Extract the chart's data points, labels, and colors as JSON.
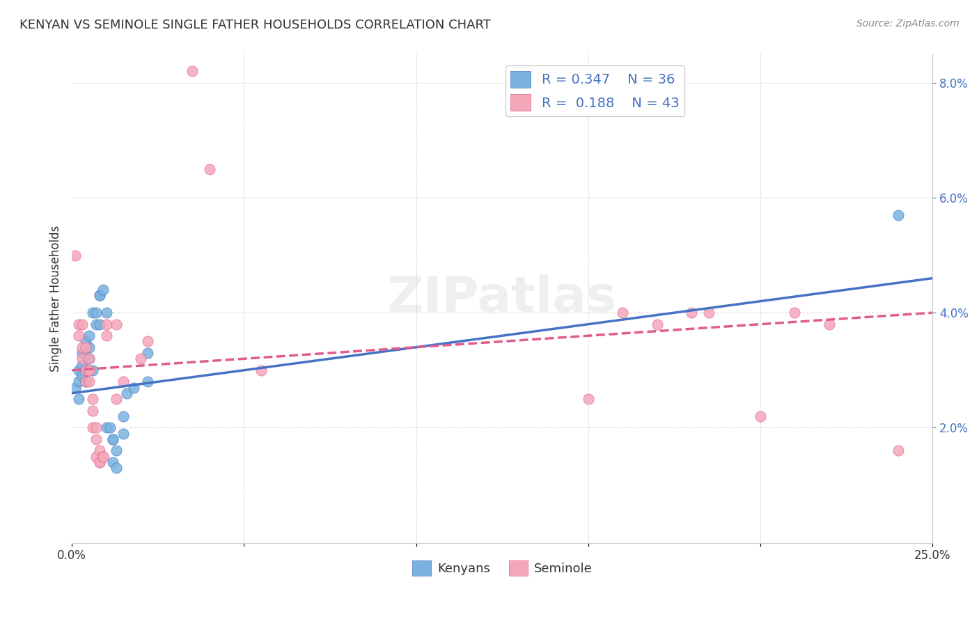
{
  "title": "KENYAN VS SEMINOLE SINGLE FATHER HOUSEHOLDS CORRELATION CHART",
  "source": "Source: ZipAtlas.com",
  "ylabel": "Single Father Households",
  "xlim": [
    0.0,
    0.25
  ],
  "ylim": [
    0.0,
    0.085
  ],
  "xticks": [
    0.0,
    0.05,
    0.1,
    0.15,
    0.2,
    0.25
  ],
  "yticks_right": [
    0.02,
    0.04,
    0.06,
    0.08
  ],
  "ytick_labels_right": [
    "2.0%",
    "4.0%",
    "6.0%",
    "8.0%"
  ],
  "watermark": "ZIPatlas",
  "legend_r1": "0.347",
  "legend_n1": "36",
  "legend_r2": "0.188",
  "legend_n2": "43",
  "kenyan_color": "#7ab3e0",
  "seminole_color": "#f4a7b9",
  "kenyan_line_color": "#4472c4",
  "seminole_line_color": "#e05c8a",
  "kenyan_scatter": [
    [
      0.001,
      0.027
    ],
    [
      0.002,
      0.025
    ],
    [
      0.002,
      0.03
    ],
    [
      0.002,
      0.028
    ],
    [
      0.003,
      0.031
    ],
    [
      0.003,
      0.033
    ],
    [
      0.003,
      0.029
    ],
    [
      0.004,
      0.035
    ],
    [
      0.004,
      0.03
    ],
    [
      0.004,
      0.028
    ],
    [
      0.005,
      0.034
    ],
    [
      0.005,
      0.032
    ],
    [
      0.005,
      0.036
    ],
    [
      0.006,
      0.04
    ],
    [
      0.006,
      0.03
    ],
    [
      0.007,
      0.04
    ],
    [
      0.007,
      0.038
    ],
    [
      0.008,
      0.038
    ],
    [
      0.008,
      0.043
    ],
    [
      0.008,
      0.043
    ],
    [
      0.009,
      0.044
    ],
    [
      0.01,
      0.04
    ],
    [
      0.01,
      0.02
    ],
    [
      0.011,
      0.02
    ],
    [
      0.012,
      0.018
    ],
    [
      0.012,
      0.018
    ],
    [
      0.012,
      0.014
    ],
    [
      0.013,
      0.016
    ],
    [
      0.013,
      0.013
    ],
    [
      0.015,
      0.022
    ],
    [
      0.015,
      0.019
    ],
    [
      0.016,
      0.026
    ],
    [
      0.018,
      0.027
    ],
    [
      0.022,
      0.033
    ],
    [
      0.022,
      0.028
    ],
    [
      0.24,
      0.057
    ]
  ],
  "seminole_scatter": [
    [
      0.001,
      0.05
    ],
    [
      0.002,
      0.038
    ],
    [
      0.002,
      0.036
    ],
    [
      0.003,
      0.038
    ],
    [
      0.003,
      0.034
    ],
    [
      0.003,
      0.032
    ],
    [
      0.004,
      0.034
    ],
    [
      0.004,
      0.03
    ],
    [
      0.004,
      0.028
    ],
    [
      0.005,
      0.032
    ],
    [
      0.005,
      0.03
    ],
    [
      0.005,
      0.03
    ],
    [
      0.005,
      0.028
    ],
    [
      0.006,
      0.025
    ],
    [
      0.006,
      0.023
    ],
    [
      0.006,
      0.02
    ],
    [
      0.007,
      0.02
    ],
    [
      0.007,
      0.018
    ],
    [
      0.007,
      0.015
    ],
    [
      0.008,
      0.016
    ],
    [
      0.008,
      0.014
    ],
    [
      0.008,
      0.014
    ],
    [
      0.009,
      0.015
    ],
    [
      0.009,
      0.015
    ],
    [
      0.01,
      0.038
    ],
    [
      0.01,
      0.036
    ],
    [
      0.013,
      0.038
    ],
    [
      0.013,
      0.025
    ],
    [
      0.015,
      0.028
    ],
    [
      0.02,
      0.032
    ],
    [
      0.022,
      0.035
    ],
    [
      0.035,
      0.082
    ],
    [
      0.04,
      0.065
    ],
    [
      0.055,
      0.03
    ],
    [
      0.15,
      0.025
    ],
    [
      0.16,
      0.04
    ],
    [
      0.17,
      0.038
    ],
    [
      0.18,
      0.04
    ],
    [
      0.185,
      0.04
    ],
    [
      0.2,
      0.022
    ],
    [
      0.21,
      0.04
    ],
    [
      0.22,
      0.038
    ],
    [
      0.24,
      0.016
    ]
  ],
  "kenyan_trendline": [
    [
      0.0,
      0.026
    ],
    [
      0.25,
      0.046
    ]
  ],
  "seminole_trendline": [
    [
      0.0,
      0.03
    ],
    [
      0.25,
      0.04
    ]
  ],
  "background_color": "#ffffff",
  "grid_color": "#dddddd"
}
